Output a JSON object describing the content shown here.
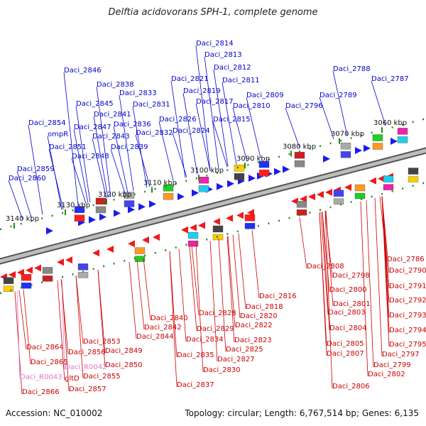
{
  "title": "Delftia acidovorans SPH-1, complete genome",
  "accession": "Accession: NC_010002",
  "stats": "Topology: circular; Length: 6,767,514 bp; Genes: 6,135",
  "colors": {
    "forward_label": "#0000cc",
    "reverse_label": "#cc0000",
    "rna_label": "#dd77cc",
    "backbone": "#808080",
    "tick": "#228822"
  },
  "ticks": [
    {
      "label": "3140 kbp"
    },
    {
      "label": "3130 kbp"
    },
    {
      "label": "3120 kbp"
    },
    {
      "label": "3110 kbp"
    },
    {
      "label": "3100 kbp"
    },
    {
      "label": "3090 kbp"
    },
    {
      "label": "3080 kbp"
    },
    {
      "label": "3070 kbp"
    },
    {
      "label": "3060 kbp"
    }
  ],
  "forward_genes": [
    "Daci_2814",
    "Daci_2813",
    "Daci_2812",
    "Daci_2811",
    "Daci_2809",
    "Daci_2810",
    "Daci_2821",
    "Daci_2819",
    "Daci_2817",
    "Daci_2815",
    "Daci_2826",
    "Daci_2824",
    "Daci_2846",
    "Daci_2838",
    "Daci_2833",
    "Daci_2845",
    "Daci_2831",
    "Daci_2841",
    "Daci_2836",
    "Daci_2847",
    "Daci_2832",
    "Daci_2843",
    "Daci_2854",
    "ompR",
    "Daci_2851",
    "Daci_2839",
    "Daci_2848",
    "Daci_2859",
    "Daci_2860",
    "Daci_2796",
    "Daci_2788",
    "Daci_2789",
    "Daci_2787"
  ],
  "reverse_genes": [
    "Daci_2786",
    "Daci_2808",
    "Daci_2790",
    "Daci_2798",
    "Daci_2791",
    "Daci_2800",
    "Daci_2792",
    "Daci_2801",
    "Daci_2793",
    "Daci_2803",
    "Daci_2794",
    "Daci_2804",
    "Daci_2795",
    "Daci_2805",
    "Daci_2797",
    "Daci_2807",
    "Daci_2799",
    "Daci_2802",
    "Daci_2806",
    "Daci_2816",
    "Daci_2818",
    "Daci_2820",
    "Daci_2822",
    "Daci_2823",
    "Daci_2825",
    "Daci_2827",
    "Daci_2830",
    "Daci_2828",
    "Daci_2829",
    "Daci_2834",
    "Daci_2835",
    "Daci_2837",
    "Daci_2840",
    "Daci_2842",
    "Daci_2844",
    "Daci_2853",
    "Daci_2856",
    "Daci_2849",
    "Daci_2850",
    "Daci_2855",
    "Daci_2857",
    "gltD",
    "Daci_2864",
    "Daci_2865",
    "Daci_2866"
  ],
  "rna_genes": [
    "Daci_R0043",
    "Daci_R0042"
  ]
}
